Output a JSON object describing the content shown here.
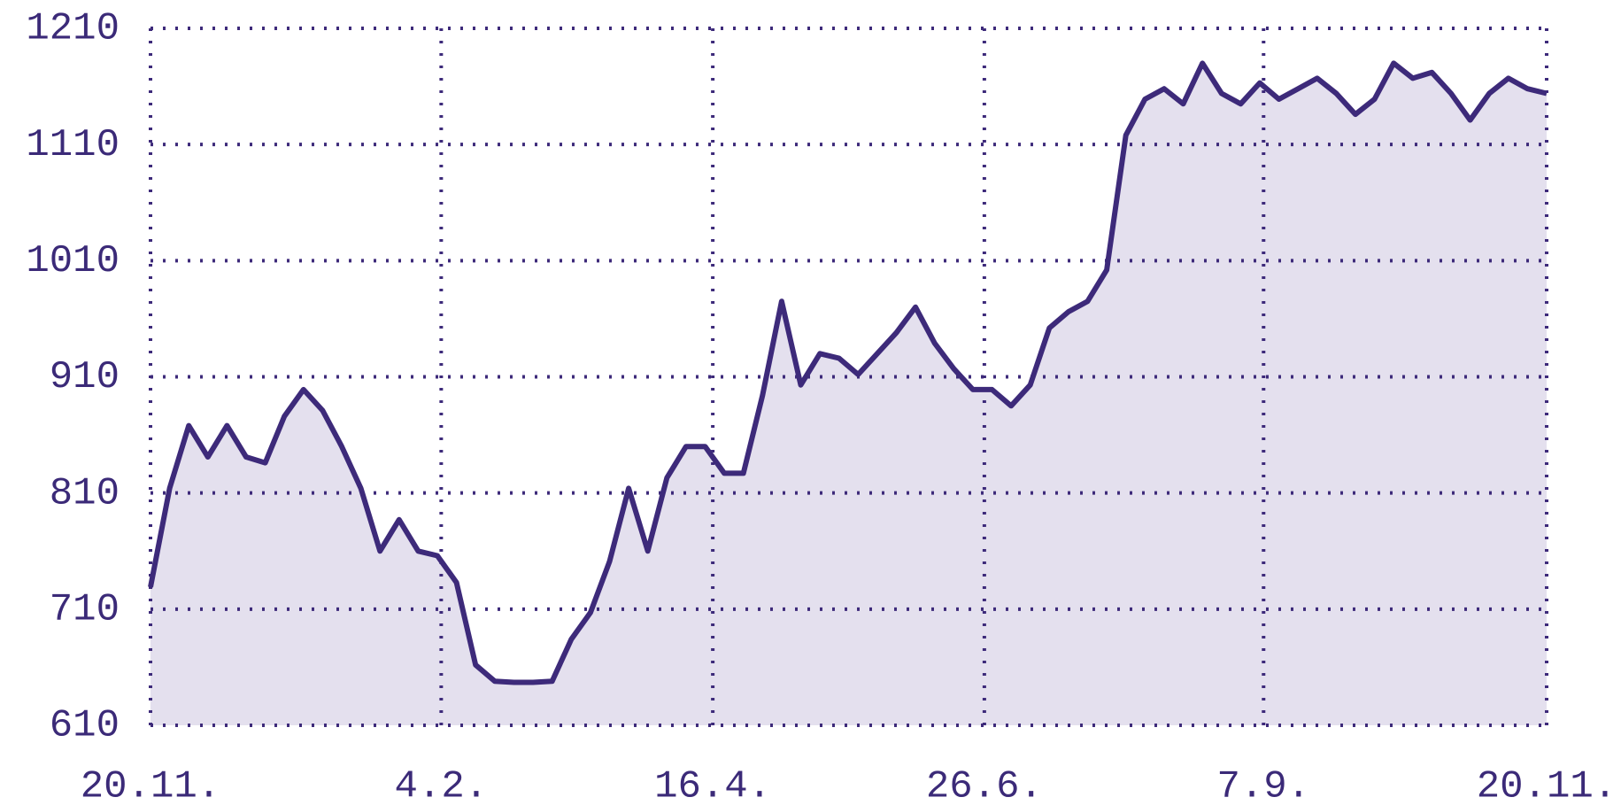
{
  "chart_data": {
    "type": "line",
    "x": [
      0,
      5,
      10,
      15,
      20,
      25,
      30,
      35,
      40,
      45,
      50,
      55,
      60,
      65,
      70,
      75,
      80,
      85,
      90,
      95,
      100,
      105,
      110,
      115,
      120,
      125,
      130,
      135,
      140,
      145,
      150,
      155,
      160,
      165,
      170,
      175,
      180,
      185,
      190,
      195,
      200,
      205,
      210,
      215,
      220,
      225,
      230,
      235,
      240,
      245,
      250,
      255,
      260,
      265,
      270,
      275,
      280,
      285,
      290,
      295,
      300,
      305,
      310,
      315,
      320,
      325,
      330,
      335,
      340,
      345,
      350,
      355,
      360,
      365
    ],
    "series": [
      {
        "color": "#3d2a7a",
        "fill": "#e4e0ee",
        "values": [
          729,
          814,
          868,
          841,
          868,
          841,
          836,
          876,
          899,
          881,
          850,
          814,
          760,
          787,
          760,
          756,
          733,
          662,
          648,
          647,
          647,
          648,
          684,
          707,
          751,
          814,
          760,
          823,
          850,
          850,
          827,
          827,
          894,
          975,
          903,
          930,
          926,
          912,
          930,
          948,
          970,
          939,
          917,
          899,
          899,
          885,
          903,
          952,
          966,
          975,
          1002,
          1118,
          1149,
          1158,
          1145,
          1180,
          1154,
          1145,
          1163,
          1149,
          1158,
          1167,
          1154,
          1136,
          1149,
          1180,
          1167,
          1172,
          1154,
          1131,
          1154,
          1167,
          1158,
          1154
        ]
      }
    ],
    "xlim": [
      0,
      365
    ],
    "xticks": [
      {
        "value": 0,
        "label": "20.11."
      },
      {
        "value": 76,
        "label": "4.2."
      },
      {
        "value": 147,
        "label": "16.4."
      },
      {
        "value": 218,
        "label": "26.6."
      },
      {
        "value": 291,
        "label": "7.9."
      },
      {
        "value": 365,
        "label": "20.11."
      }
    ],
    "ylim": [
      610,
      1210
    ],
    "yticks": [
      610,
      710,
      810,
      910,
      1010,
      1110,
      1210
    ],
    "grid": true
  }
}
